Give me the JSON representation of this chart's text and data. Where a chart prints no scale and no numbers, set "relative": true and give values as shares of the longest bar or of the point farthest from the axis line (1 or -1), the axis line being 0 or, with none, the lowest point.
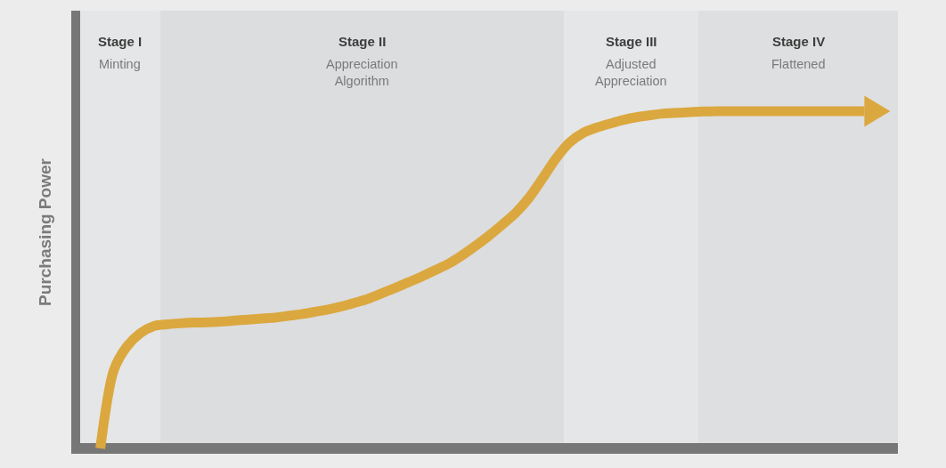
{
  "chart_data": {
    "type": "line",
    "ylabel": "Purchasing Power",
    "relative": true,
    "categories": [
      null,
      null,
      null,
      null,
      null,
      null,
      null,
      null,
      null,
      null,
      null,
      null,
      null,
      null,
      null,
      null,
      null,
      null,
      null,
      null,
      null,
      null,
      null,
      null,
      null,
      null,
      null,
      null,
      null,
      null,
      null,
      null,
      null,
      null,
      null,
      null,
      null,
      null,
      null,
      null,
      null,
      null,
      null,
      null,
      null,
      null,
      null,
      null,
      null,
      null,
      null,
      null,
      null,
      null,
      null,
      null,
      null,
      null,
      null,
      null,
      null
    ],
    "series": [
      {
        "color": "#dba83f",
        "values": [
          null,
          0,
          0.231,
          0.303,
          0.342,
          0.363,
          0.368,
          0.371,
          0.373,
          0.374,
          0.376,
          0.379,
          0.382,
          0.385,
          0.388,
          0.393,
          0.398,
          0.405,
          0.412,
          0.421,
          0.432,
          0.444,
          0.46,
          0.476,
          0.493,
          0.51,
          0.529,
          0.548,
          0.573,
          0.601,
          0.631,
          0.664,
          0.699,
          0.744,
          0.801,
          0.86,
          0.907,
          0.935,
          0.951,
          0.963,
          0.974,
          0.982,
          0.988,
          0.993,
          0.995,
          0.997,
          0.999,
          1,
          1,
          1,
          1,
          1,
          1,
          1,
          1,
          1,
          1,
          1,
          1,
          null,
          null
        ]
      }
    ],
    "annotations": [
      "Stage I\nMinting",
      "Stage II\nAppreciation\nAlgorithm",
      "Stage III\nAdjusted\nAppreciation",
      "Stage IV\nFlattened"
    ]
  }
}
